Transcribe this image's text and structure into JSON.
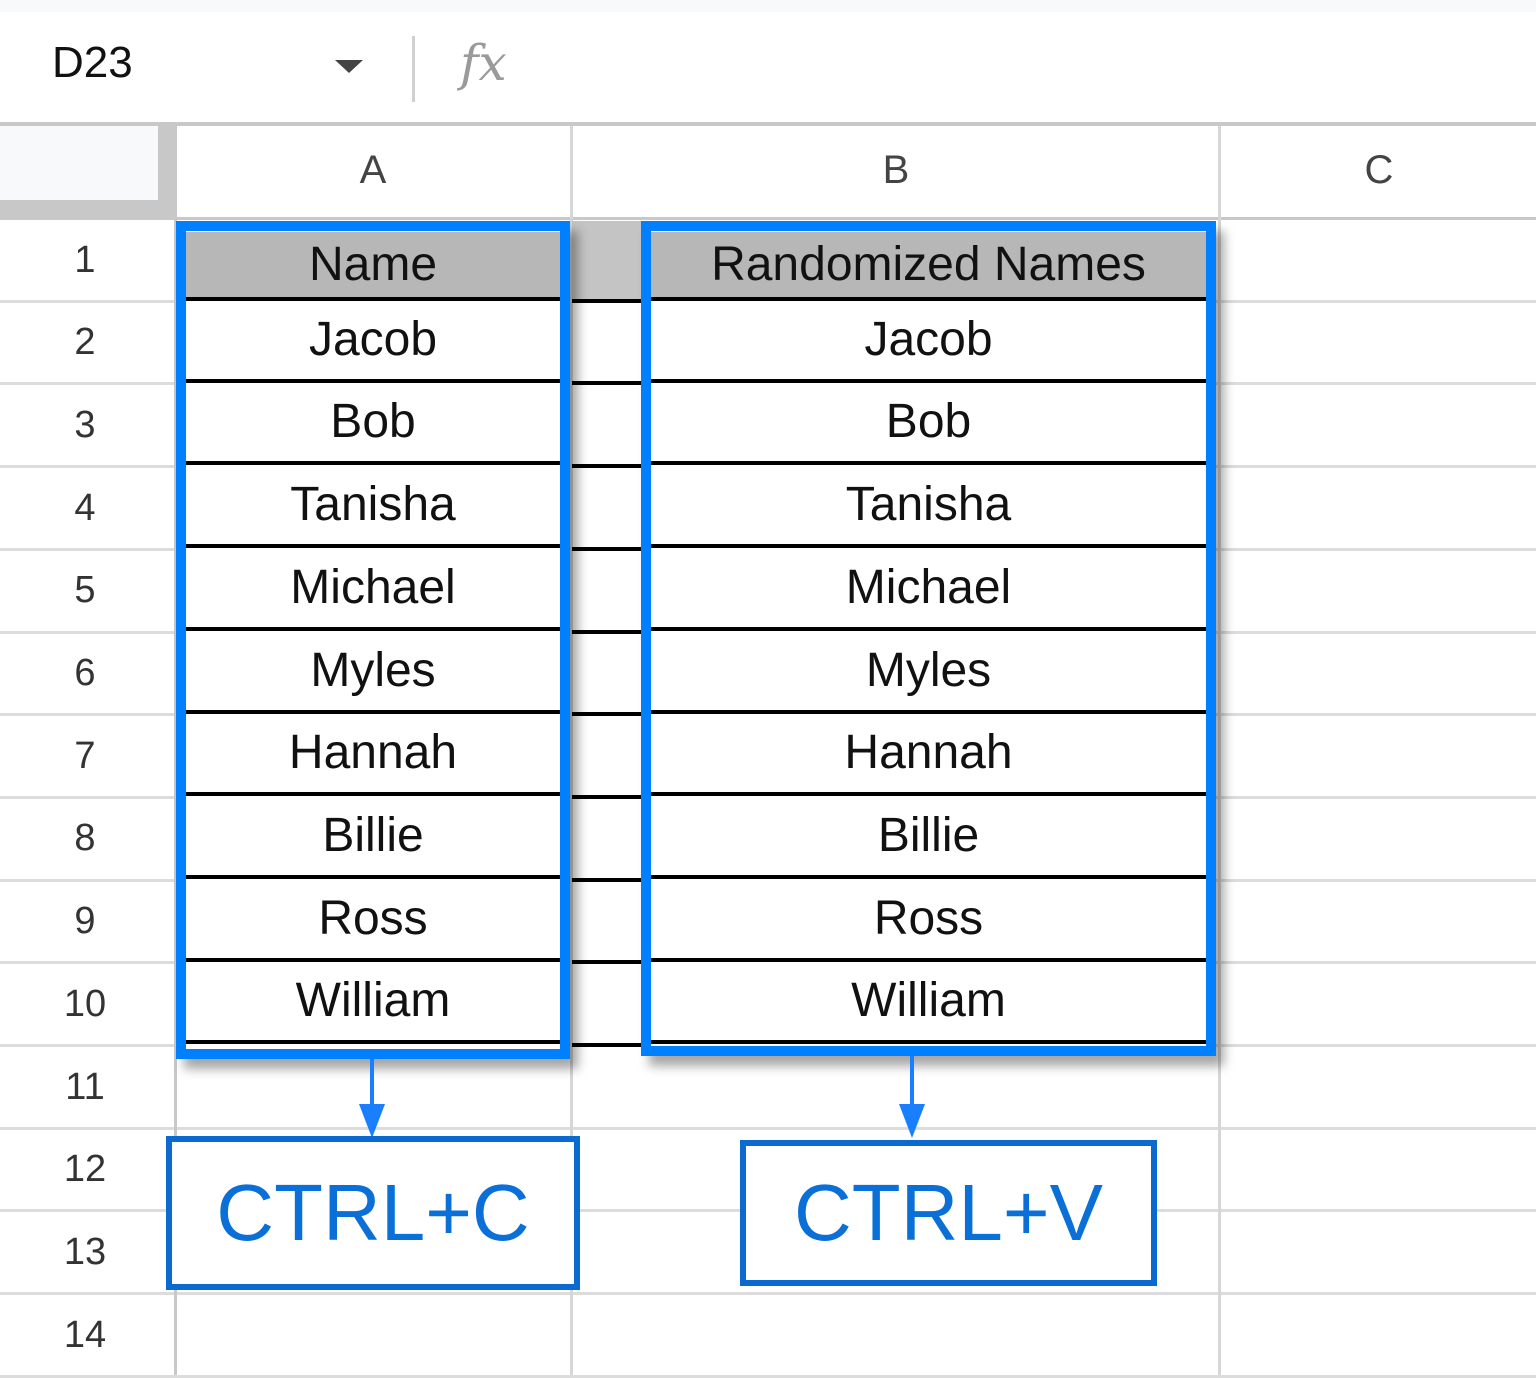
{
  "formula_bar": {
    "cell_reference": "D23",
    "fx_label": "fx",
    "formula": ""
  },
  "columns": [
    "A",
    "B",
    "C"
  ],
  "rows": [
    "1",
    "2",
    "3",
    "4",
    "5",
    "6",
    "7",
    "8",
    "9",
    "10",
    "11",
    "12",
    "13",
    "14"
  ],
  "column_a": {
    "header": "Name",
    "values": [
      "Jacob",
      "Bob",
      "Tanisha",
      "Michael",
      "Myles",
      "Hannah",
      "Billie",
      "Ross",
      "William"
    ]
  },
  "column_b": {
    "header": "Randomized Names",
    "values": [
      "Jacob",
      "Bob",
      "Tanisha",
      "Michael",
      "Myles",
      "Hannah",
      "Billie",
      "Ross",
      "William"
    ]
  },
  "annotations": {
    "copy_label": "CTRL+C",
    "paste_label": "CTRL+V"
  },
  "colors": {
    "highlight": "#0080ff",
    "header_fill": "#b7b7b7",
    "annotation": "#0a6fd6"
  }
}
